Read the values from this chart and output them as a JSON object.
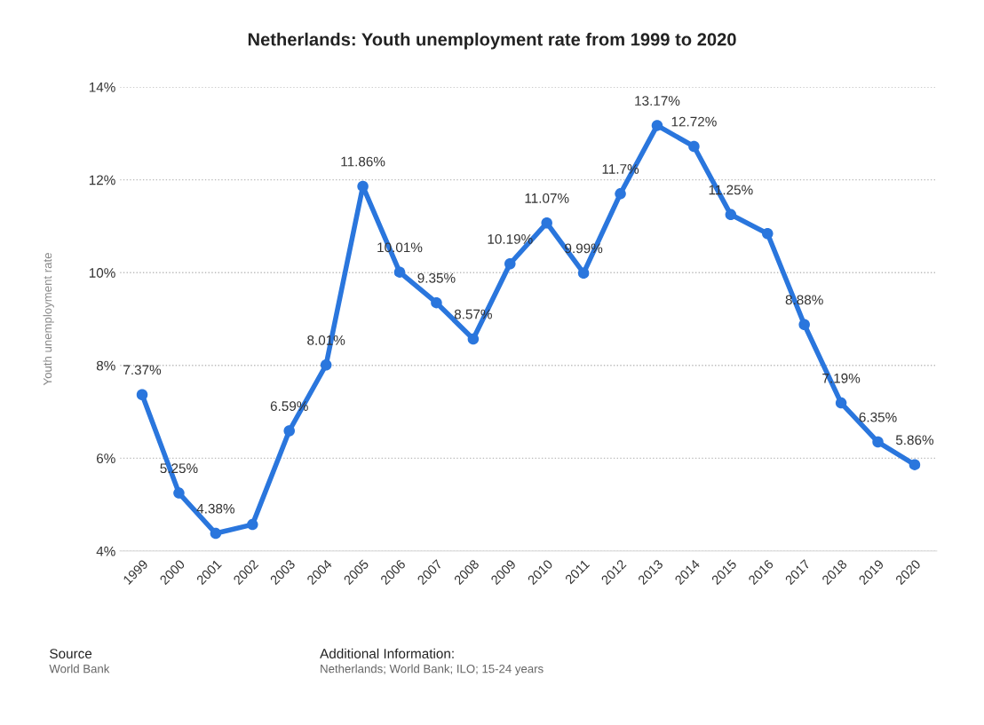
{
  "chart_data": {
    "type": "line",
    "title": "Netherlands: Youth unemployment rate from 1999 to 2020",
    "ylabel": "Youth unemployment rate",
    "categories": [
      "1999",
      "2000",
      "2001",
      "2002",
      "2003",
      "2004",
      "2005",
      "2006",
      "2007",
      "2008",
      "2009",
      "2010",
      "2011",
      "2012",
      "2013",
      "2014",
      "2015",
      "2016",
      "2017",
      "2018",
      "2019",
      "2020"
    ],
    "series": [
      {
        "color": "#2a76dd",
        "values": [
          7.37,
          5.25,
          4.38,
          4.57,
          6.59,
          8.01,
          11.86,
          10.01,
          9.35,
          8.57,
          10.19,
          11.07,
          9.99,
          11.7,
          13.17,
          12.72,
          11.25,
          10.84,
          8.88,
          7.19,
          6.35,
          5.86
        ],
        "value_labels": [
          "7.37%",
          "5.25%",
          "4.38%",
          null,
          "6.59%",
          "8.01%",
          "11.86%",
          "10.01%",
          "9.35%",
          "8.57%",
          "10.19%",
          "11.07%",
          "9.99%",
          "11.7%",
          "13.17%",
          "12.72%",
          "11.25%",
          null,
          "8.88%",
          "7.19%",
          "6.35%",
          "5.86%"
        ]
      }
    ],
    "ylim": [
      4,
      14
    ],
    "yticks": [
      {
        "value": 4,
        "label": "4%"
      },
      {
        "value": 6,
        "label": "6%"
      },
      {
        "value": 8,
        "label": "8%"
      },
      {
        "value": 10,
        "label": "10%"
      },
      {
        "value": 12,
        "label": "12%"
      },
      {
        "value": 14,
        "label": "14%"
      }
    ],
    "grid": "y",
    "marker": "circle",
    "line_style": "solid",
    "annotations": [
      "Source",
      "World Bank",
      "Additional Information:",
      "Netherlands; World Bank; ILO; 15-24 years"
    ]
  }
}
